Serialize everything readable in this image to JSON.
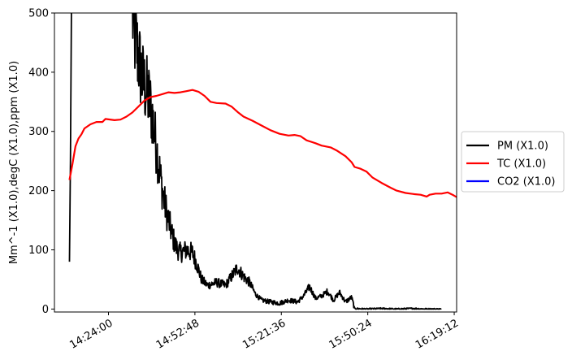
{
  "chart_data": {
    "type": "line",
    "title": "",
    "xlabel": "",
    "ylabel": "Mm^-1 (X1.0),degC (X1.0),ppm (X1.0)",
    "x_is_time": true,
    "xlim": [
      "14:06:00",
      "16:20:00"
    ],
    "ylim": [
      -5,
      500
    ],
    "yticks": [
      0,
      100,
      200,
      300,
      400,
      500
    ],
    "xticks": [
      "14:24:00",
      "14:52:48",
      "15:21:36",
      "15:50:24",
      "16:19:12"
    ],
    "legend_position": "outside-right",
    "grid": false,
    "series": [
      {
        "name": "PM (X1.0)",
        "color": "#000000",
        "noisy": true,
        "points": [
          [
            "14:11:00",
            80
          ],
          [
            "14:11:20",
            250
          ],
          [
            "14:11:40",
            500
          ],
          [
            "14:32:00",
            500
          ],
          [
            "14:32:30",
            470
          ],
          [
            "14:33:30",
            440
          ],
          [
            "14:34:30",
            410
          ],
          [
            "14:35:30",
            385
          ],
          [
            "14:36:30",
            370
          ],
          [
            "14:37:30",
            355
          ],
          [
            "14:38:30",
            330
          ],
          [
            "14:39:30",
            290
          ],
          [
            "14:40:30",
            255
          ],
          [
            "14:41:30",
            215
          ],
          [
            "14:42:30",
            185
          ],
          [
            "14:43:30",
            160
          ],
          [
            "14:44:30",
            140
          ],
          [
            "14:45:30",
            120
          ],
          [
            "14:46:30",
            105
          ],
          [
            "14:48:00",
            95
          ],
          [
            "14:50:00",
            100
          ],
          [
            "14:52:00",
            95
          ],
          [
            "14:53:30",
            75
          ],
          [
            "14:55:00",
            50
          ],
          [
            "14:57:00",
            40
          ],
          [
            "15:00:00",
            45
          ],
          [
            "15:03:00",
            40
          ],
          [
            "15:05:00",
            55
          ],
          [
            "15:07:00",
            70
          ],
          [
            "15:09:00",
            55
          ],
          [
            "15:11:00",
            45
          ],
          [
            "15:13:00",
            25
          ],
          [
            "15:15:00",
            15
          ],
          [
            "15:18:00",
            12
          ],
          [
            "15:21:00",
            10
          ],
          [
            "15:24:00",
            15
          ],
          [
            "15:27:00",
            12
          ],
          [
            "15:29:00",
            22
          ],
          [
            "15:31:00",
            38
          ],
          [
            "15:33:00",
            18
          ],
          [
            "15:35:00",
            22
          ],
          [
            "15:37:00",
            30
          ],
          [
            "15:39:00",
            15
          ],
          [
            "15:41:00",
            28
          ],
          [
            "15:43:00",
            12
          ],
          [
            "15:45:00",
            20
          ],
          [
            "15:46:00",
            1
          ],
          [
            "15:50:00",
            0
          ],
          [
            "15:55:00",
            1
          ],
          [
            "16:00:00",
            0
          ],
          [
            "16:05:00",
            1
          ],
          [
            "16:10:00",
            0
          ],
          [
            "16:15:00",
            0
          ]
        ]
      },
      {
        "name": "TC (X1.0)",
        "color": "#ff0000",
        "noisy": false,
        "points": [
          [
            "14:11:00",
            218
          ],
          [
            "14:12:00",
            245
          ],
          [
            "14:13:00",
            275
          ],
          [
            "14:14:00",
            288
          ],
          [
            "14:15:00",
            295
          ],
          [
            "14:16:00",
            305
          ],
          [
            "14:18:00",
            312
          ],
          [
            "14:20:00",
            316
          ],
          [
            "14:22:00",
            316
          ],
          [
            "14:23:00",
            321
          ],
          [
            "14:26:00",
            319
          ],
          [
            "14:28:00",
            320
          ],
          [
            "14:30:00",
            325
          ],
          [
            "14:32:00",
            332
          ],
          [
            "14:34:00",
            342
          ],
          [
            "14:36:00",
            352
          ],
          [
            "14:38:00",
            358
          ],
          [
            "14:40:00",
            360
          ],
          [
            "14:42:00",
            363
          ],
          [
            "14:44:00",
            366
          ],
          [
            "14:46:00",
            365
          ],
          [
            "14:48:00",
            366
          ],
          [
            "14:50:00",
            368
          ],
          [
            "14:52:00",
            370
          ],
          [
            "14:54:00",
            367
          ],
          [
            "14:56:00",
            360
          ],
          [
            "14:58:00",
            350
          ],
          [
            "15:00:00",
            348
          ],
          [
            "15:03:00",
            347
          ],
          [
            "15:05:00",
            342
          ],
          [
            "15:07:00",
            333
          ],
          [
            "15:09:00",
            325
          ],
          [
            "15:12:00",
            318
          ],
          [
            "15:15:00",
            310
          ],
          [
            "15:18:00",
            302
          ],
          [
            "15:21:00",
            296
          ],
          [
            "15:24:00",
            293
          ],
          [
            "15:26:00",
            294
          ],
          [
            "15:28:00",
            292
          ],
          [
            "15:30:00",
            285
          ],
          [
            "15:33:00",
            280
          ],
          [
            "15:35:00",
            276
          ],
          [
            "15:38:00",
            273
          ],
          [
            "15:40:00",
            268
          ],
          [
            "15:43:00",
            258
          ],
          [
            "15:45:00",
            248
          ],
          [
            "15:46:00",
            240
          ],
          [
            "15:48:00",
            237
          ],
          [
            "15:50:00",
            232
          ],
          [
            "15:52:00",
            222
          ],
          [
            "15:55:00",
            213
          ],
          [
            "15:58:00",
            205
          ],
          [
            "16:00:00",
            200
          ],
          [
            "16:03:00",
            196
          ],
          [
            "16:06:00",
            194
          ],
          [
            "16:08:00",
            193
          ],
          [
            "16:10:00",
            190
          ],
          [
            "16:11:00",
            193
          ],
          [
            "16:13:00",
            195
          ],
          [
            "16:15:00",
            195
          ],
          [
            "16:17:00",
            197
          ],
          [
            "16:19:00",
            192
          ],
          [
            "16:20:00",
            189
          ]
        ]
      },
      {
        "name": "CO2 (X1.0)",
        "color": "#0000ff",
        "noisy": false,
        "points": []
      }
    ]
  }
}
